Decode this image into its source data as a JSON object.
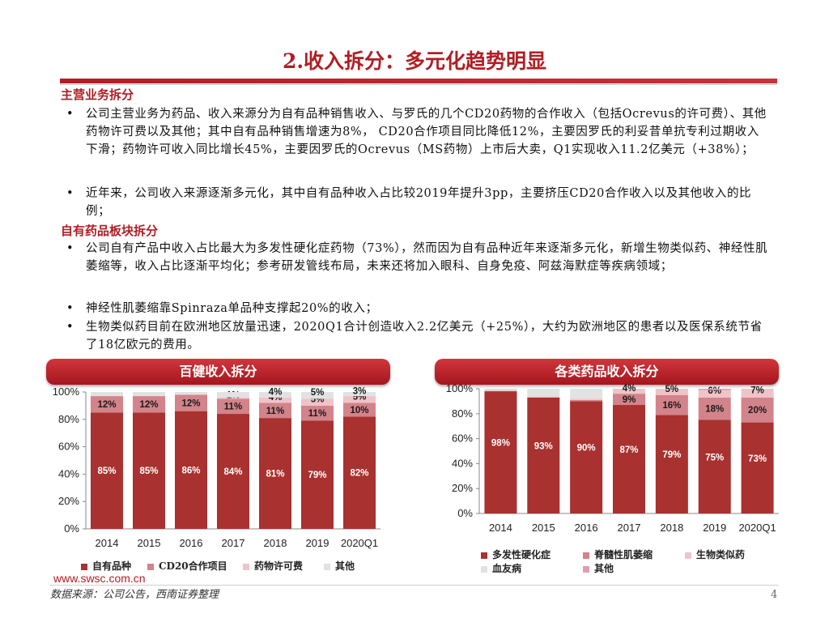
{
  "title": "2.收入拆分：多元化趋势明显",
  "sections": [
    {
      "heading": "主营业务拆分",
      "bullets": [
        "公司主营业务为药品、收入来源分为自有品种销售收入、与罗氏的几个CD20药物的合作收入（包括Ocrevus的许可费）、其他药物许可费以及其他；其中自有品种销售增速为8%， CD20合作项目同比降低12%，主要因罗氏的利妥昔单抗专利过期收入下滑；药物许可收入同比增长45%，主要因罗氏的Ocrevus（MS药物）上市后大卖，Q1实现收入11.2亿美元（+38%）；",
        "近年来，公司收入来源逐渐多元化，其中自有品种收入占比较2019年提升3pp，主要挤压CD20合作收入以及其他收入的比例；"
      ]
    },
    {
      "heading": "自有药品板块拆分",
      "bullets": [
        "公司自有产品中收入占比最大为多发性硬化症药物（73%），然而因为自有品种近年来逐渐多元化，新增生物类似药、神经性肌萎缩等，收入占比逐渐平均化；参考研发管线布局，未来还将加入眼科、自身免疫、阿兹海默症等疾病领域；",
        "神经性肌萎缩靠Spinraza单品种支撑起20%的收入；",
        "生物类似药目前在欧洲地区放量迅速，2020Q1合计创造收入2.2亿美元（+25%），大约为欧洲地区的患者以及医保系统节省了18亿欧元的费用。"
      ]
    }
  ],
  "left_chart": {
    "banner": "百健收入拆分",
    "chart_data": {
      "type": "bar",
      "stacked": true,
      "categories": [
        "2014",
        "2015",
        "2016",
        "2017",
        "2018",
        "2019",
        "2020Q1"
      ],
      "y_ticks": [
        "0%",
        "20%",
        "40%",
        "60%",
        "80%",
        "100%"
      ],
      "ylim": [
        0,
        100
      ],
      "series": [
        {
          "name": "自有品种",
          "color": "#a9312f",
          "values": [
            85,
            85,
            86,
            84,
            81,
            79,
            82
          ],
          "labels": [
            "85%",
            "85%",
            "86%",
            "84%",
            "81%",
            "79%",
            "82%"
          ]
        },
        {
          "name": "CD20合作项目",
          "color": "#d3838a",
          "values": [
            12,
            12,
            12,
            11,
            11,
            11,
            10
          ],
          "labels": [
            "12%",
            "12%",
            "12%",
            "11%",
            "11%",
            "11%",
            "10%"
          ]
        },
        {
          "name": "药物许可费",
          "color": "#f0c3c8",
          "values": [
            0,
            0,
            0,
            1,
            4,
            5,
            5
          ],
          "labels": [
            "",
            "",
            "",
            "1%",
            "4%",
            "5%",
            "5%"
          ]
        },
        {
          "name": "其他",
          "color": "#e2e2e2",
          "values": [
            3,
            3,
            2,
            4,
            4,
            5,
            3
          ],
          "labels": [
            "",
            "",
            "",
            "",
            "4%",
            "5%",
            "3%"
          ]
        }
      ]
    }
  },
  "right_chart": {
    "banner": "各类药品收入拆分",
    "chart_data": {
      "type": "bar",
      "stacked": true,
      "categories": [
        "2014",
        "2015",
        "2016",
        "2017",
        "2018",
        "2019",
        "2020Q1"
      ],
      "y_ticks": [
        "0%",
        "20%",
        "40%",
        "60%",
        "80%",
        "100%"
      ],
      "ylim": [
        0,
        100
      ],
      "series": [
        {
          "name": "多发性硬化症",
          "color": "#a9312f",
          "values": [
            98,
            93,
            90,
            87,
            79,
            75,
            73
          ],
          "labels": [
            "98%",
            "93%",
            "90%",
            "87%",
            "79%",
            "75%",
            "73%"
          ]
        },
        {
          "name": "脊髓性肌萎缩",
          "color": "#d3838a",
          "values": [
            0,
            0,
            1,
            9,
            16,
            18,
            20
          ],
          "labels": [
            "",
            "",
            "",
            "9%",
            "16%",
            "18%",
            "20%"
          ]
        },
        {
          "name": "生物类似药",
          "color": "#f0c3c8",
          "values": [
            1,
            1,
            1,
            4,
            5,
            6,
            7
          ],
          "labels": [
            "",
            "",
            "",
            "4%",
            "5%",
            "6%",
            "7%"
          ]
        },
        {
          "name": "血友病",
          "color": "#e2e2e2",
          "values": [
            1,
            6,
            8,
            0,
            0,
            0,
            0
          ],
          "labels": [
            "",
            "",
            "",
            "",
            "",
            "",
            ""
          ]
        },
        {
          "name": "其他",
          "color": "#e69ab4",
          "values": [
            0,
            0,
            0,
            0,
            0,
            1,
            0
          ],
          "labels": [
            "",
            "",
            "",
            "",
            "",
            "",
            ""
          ]
        }
      ]
    }
  },
  "footer": {
    "url": "www.swsc.com.cn",
    "source": "数据来源：公司公告，西南证券整理",
    "page": "4"
  }
}
